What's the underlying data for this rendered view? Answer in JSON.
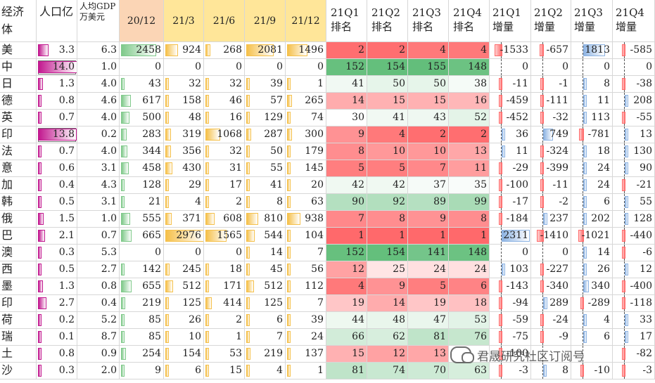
{
  "headers": {
    "economy": "经济体",
    "population": "人口亿",
    "gdp_per_capita": "人均GDP万美元",
    "months": [
      "20/12",
      "21/3",
      "21/6",
      "21/9",
      "21/12"
    ],
    "ranks": [
      "21Q1排名",
      "21Q2排名",
      "21Q3排名",
      "21Q4排名"
    ],
    "changes": [
      "21Q1增量",
      "21Q2增量",
      "21Q3增量",
      "21Q4增量"
    ]
  },
  "rows": [
    {
      "name": "美",
      "pop": "3.3",
      "gdp": "6.3",
      "m": [
        "2458",
        "924",
        "268",
        "2081",
        "1496"
      ],
      "r": [
        "2",
        "2",
        "4",
        "4"
      ],
      "c": [
        "-1533",
        "-657",
        "1813",
        "-585"
      ]
    },
    {
      "name": "中",
      "pop": "14.0",
      "gdp": "1.0",
      "m": [
        "0",
        "0",
        "0",
        "0",
        "0"
      ],
      "r": [
        "152",
        "154",
        "155",
        "148"
      ],
      "c": [
        "0",
        "0",
        "0",
        "0"
      ]
    },
    {
      "name": "日",
      "pop": "1.3",
      "gdp": "4.0",
      "m": [
        "43",
        "32",
        "32",
        "39",
        "1"
      ],
      "r": [
        "41",
        "50",
        "50",
        "38"
      ],
      "c": [
        "-11",
        "-1",
        "8",
        "-38"
      ]
    },
    {
      "name": "德",
      "pop": "0.8",
      "gdp": "4.6",
      "m": [
        "617",
        "158",
        "46",
        "57",
        "265"
      ],
      "r": [
        "14",
        "15",
        "15",
        "16"
      ],
      "c": [
        "-459",
        "-111",
        "11",
        "208"
      ]
    },
    {
      "name": "英",
      "pop": "0.7",
      "gdp": "4.0",
      "m": [
        "500",
        "48",
        "16",
        "129",
        "74"
      ],
      "r": [
        "30",
        "41",
        "43",
        "52"
      ],
      "c": [
        "-452",
        "-32",
        "113",
        "-55"
      ]
    },
    {
      "name": "印",
      "pop": "13.8",
      "gdp": "0.2",
      "m": [
        "283",
        "319",
        "1068",
        "287",
        "300"
      ],
      "r": [
        "9",
        "4",
        "2",
        "2"
      ],
      "c": [
        "36",
        "749",
        "-781",
        "13"
      ]
    },
    {
      "name": "法",
      "pop": "0.7",
      "gdp": "4.0",
      "m": [
        "344",
        "356",
        "32",
        "50",
        "179"
      ],
      "r": [
        "8",
        "10",
        "10",
        "13"
      ],
      "c": [
        "11",
        "-324",
        "18",
        "130"
      ]
    },
    {
      "name": "意",
      "pop": "0.6",
      "gdp": "3.1",
      "m": [
        "458",
        "430",
        "31",
        "55",
        "145"
      ],
      "r": [
        "5",
        "5",
        "7",
        "11"
      ],
      "c": [
        "-29",
        "-399",
        "24",
        "90"
      ]
    },
    {
      "name": "加",
      "pop": "0.4",
      "gdp": "4.3",
      "m": [
        "128",
        "29",
        "17",
        "41",
        "20"
      ],
      "r": [
        "42",
        "42",
        "37",
        "35"
      ],
      "c": [
        "-100",
        "-11",
        "24",
        "-21"
      ]
    },
    {
      "name": "韩",
      "pop": "0.5",
      "gdp": "3.1",
      "m": [
        "21",
        "4",
        "2",
        "8",
        "63"
      ],
      "r": [
        "90",
        "92",
        "89",
        "99"
      ],
      "c": [
        "-17",
        "-2",
        "6",
        "55"
      ]
    },
    {
      "name": "俄",
      "pop": "1.5",
      "gdp": "1.0",
      "m": [
        "555",
        "371",
        "608",
        "810",
        "938"
      ],
      "r": [
        "7",
        "8",
        "9",
        "8"
      ],
      "c": [
        "-184",
        "237",
        "202",
        "128"
      ]
    },
    {
      "name": "巴",
      "pop": "2.1",
      "gdp": "0.7",
      "m": [
        "665",
        "2976",
        "1565",
        "544",
        "104"
      ],
      "r": [
        "1",
        "1",
        "1",
        "1"
      ],
      "c": [
        "2311",
        "-1410",
        "-1021",
        "-440"
      ]
    },
    {
      "name": "澳",
      "pop": "0.3",
      "gdp": "5.3",
      "m": [
        "0",
        "0",
        "0",
        "14",
        "7"
      ],
      "r": [
        "152",
        "154",
        "141",
        "148"
      ],
      "c": [
        "0",
        "0",
        "14",
        "-6"
      ]
    },
    {
      "name": "西",
      "pop": "0.5",
      "gdp": "2.7",
      "m": [
        "142",
        "245",
        "18",
        "45",
        "56"
      ],
      "r": [
        "12",
        "25",
        "24",
        "24"
      ],
      "c": [
        "103",
        "-227",
        "26",
        "12"
      ]
    },
    {
      "name": "墨",
      "pop": "1.3",
      "gdp": "0.8",
      "m": [
        "655",
        "512",
        "171",
        "512",
        "112"
      ],
      "r": [
        "4",
        "9",
        "5",
        "6"
      ],
      "c": [
        "-143",
        "-340",
        "340",
        "-400"
      ]
    },
    {
      "name": "印",
      "pop": "2.7",
      "gdp": "0.4",
      "m": [
        "219",
        "125",
        "414",
        "125",
        "7"
      ],
      "r": [
        "19",
        "14",
        "19",
        "18"
      ],
      "c": [
        "-94",
        "289",
        "-289",
        "-118"
      ]
    },
    {
      "name": "荷",
      "pop": "0.2",
      "gdp": "5.2",
      "m": [
        "85",
        "26",
        "2",
        "6",
        "39"
      ],
      "r": [
        "44",
        "48",
        "47",
        "53"
      ],
      "c": [
        "-59",
        "-24",
        "4",
        "33"
      ]
    },
    {
      "name": "瑞",
      "pop": "0.1",
      "gdp": "8.7",
      "m": [
        "85",
        "10",
        "1",
        "7",
        "24"
      ],
      "r": [
        "66",
        "62",
        "81",
        "76"
      ],
      "c": [
        "-75",
        "-9",
        "6",
        "17"
      ]
    },
    {
      "name": "土",
      "pop": "0.8",
      "gdp": "0.9",
      "m": [
        "254",
        "154",
        "53",
        "219",
        "137"
      ],
      "r": [
        "15",
        "12",
        "13",
        ""
      ],
      "c": [
        "-100",
        "",
        "",
        "-82"
      ]
    },
    {
      "name": "沙",
      "pop": "0.3",
      "gdp": "2.0",
      "m": [
        "9",
        "6",
        "15",
        "4",
        "1"
      ],
      "r": [
        "81",
        "74",
        "70",
        "63"
      ],
      "c": [
        "-3",
        "8",
        "-10",
        "-3"
      ]
    }
  ],
  "watermark": "君晟研究社区订阅号",
  "colors": {
    "pop_bar": "#c2188f",
    "month_bar_green": "#7fc98a",
    "month_bar_yellow": "#f5c04a",
    "header_yellow": "#ffe699",
    "header_peach": "#fbd5b5",
    "rank_red": "#f8696b",
    "rank_green": "#63be7b",
    "change_pos": "#8eb4e3",
    "change_neg": "#ff6b6b"
  }
}
